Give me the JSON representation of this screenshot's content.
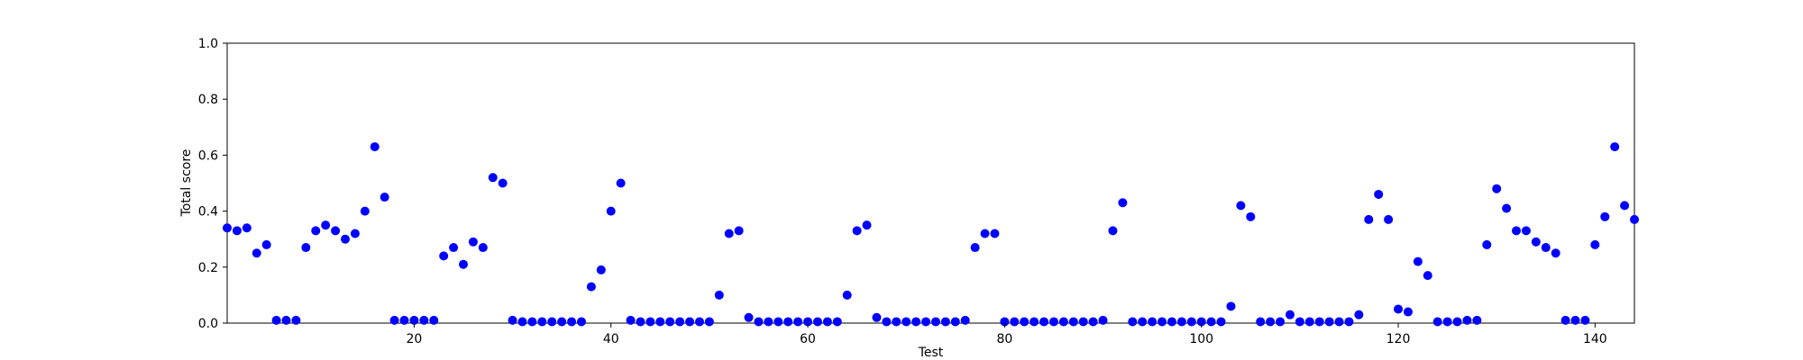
{
  "chart_data": {
    "type": "scatter",
    "title": "",
    "xlabel": "Test",
    "ylabel": "Total score",
    "xlim": [
      1,
      144
    ],
    "ylim": [
      0.0,
      1.0
    ],
    "xticks": [
      20,
      40,
      60,
      80,
      100,
      120,
      140
    ],
    "xtick_labels": [
      "20",
      "40",
      "60",
      "80",
      "100",
      "120",
      "140"
    ],
    "yticks": [
      0.0,
      0.2,
      0.4,
      0.6,
      0.8,
      1.0
    ],
    "ytick_labels": [
      "0.0",
      "0.2",
      "0.4",
      "0.6",
      "0.8",
      "1.0"
    ],
    "grid": false,
    "marker_color": "#0000ff",
    "series": [
      {
        "x": [
          1,
          2,
          3,
          4,
          5,
          6,
          7,
          8,
          9,
          10,
          11,
          12,
          13,
          14,
          15,
          16,
          17,
          18,
          19,
          20,
          21,
          22,
          23,
          24,
          25,
          26,
          27,
          28,
          29,
          30,
          31,
          32,
          33,
          34,
          35,
          36,
          37,
          38,
          39,
          40,
          41,
          42,
          43,
          44,
          45,
          46,
          47,
          48,
          49,
          50,
          51,
          52,
          53,
          54,
          55,
          56,
          57,
          58,
          59,
          60,
          61,
          62,
          63,
          64,
          65,
          66,
          67,
          68,
          69,
          70,
          71,
          72,
          73,
          74,
          75,
          76,
          77,
          78,
          79,
          80,
          81,
          82,
          83,
          84,
          85,
          86,
          87,
          88,
          89,
          90,
          91,
          92,
          93,
          94,
          95,
          96,
          97,
          98,
          99,
          100,
          101,
          102,
          103,
          104,
          105,
          106,
          107,
          108,
          109,
          110,
          111,
          112,
          113,
          114,
          115,
          116,
          117,
          118,
          119,
          120,
          121,
          122,
          123,
          124,
          125,
          126,
          127,
          128,
          129,
          130,
          131,
          132,
          133,
          134,
          135,
          136,
          137,
          138,
          139,
          140,
          141,
          142,
          143,
          144
        ],
        "y": [
          0.34,
          0.33,
          0.34,
          0.25,
          0.28,
          0.01,
          0.01,
          0.01,
          0.27,
          0.33,
          0.35,
          0.33,
          0.3,
          0.32,
          0.4,
          0.63,
          0.45,
          0.01,
          0.01,
          0.01,
          0.01,
          0.01,
          0.24,
          0.27,
          0.21,
          0.29,
          0.27,
          0.52,
          0.5,
          0.01,
          0.005,
          0.005,
          0.005,
          0.005,
          0.005,
          0.005,
          0.005,
          0.13,
          0.19,
          0.4,
          0.5,
          0.01,
          0.005,
          0.005,
          0.005,
          0.005,
          0.005,
          0.005,
          0.005,
          0.005,
          0.1,
          0.32,
          0.33,
          0.02,
          0.005,
          0.005,
          0.005,
          0.005,
          0.005,
          0.005,
          0.005,
          0.005,
          0.005,
          0.1,
          0.33,
          0.35,
          0.02,
          0.005,
          0.005,
          0.005,
          0.005,
          0.005,
          0.005,
          0.005,
          0.005,
          0.01,
          0.27,
          0.32,
          0.32,
          0.005,
          0.005,
          0.005,
          0.005,
          0.005,
          0.005,
          0.005,
          0.005,
          0.005,
          0.005,
          0.01,
          0.33,
          0.43,
          0.005,
          0.005,
          0.005,
          0.005,
          0.005,
          0.005,
          0.005,
          0.005,
          0.005,
          0.005,
          0.06,
          0.42,
          0.38,
          0.005,
          0.005,
          0.005,
          0.03,
          0.005,
          0.005,
          0.005,
          0.005,
          0.005,
          0.005,
          0.03,
          0.37,
          0.46,
          0.37,
          0.05,
          0.04,
          0.22,
          0.17,
          0.005,
          0.005,
          0.005,
          0.01,
          0.01,
          0.28,
          0.48,
          0.41,
          0.33,
          0.33,
          0.29,
          0.27,
          0.25,
          0.01,
          0.01,
          0.01,
          0.28,
          0.38,
          0.63,
          0.42,
          0.37
        ]
      }
    ]
  }
}
